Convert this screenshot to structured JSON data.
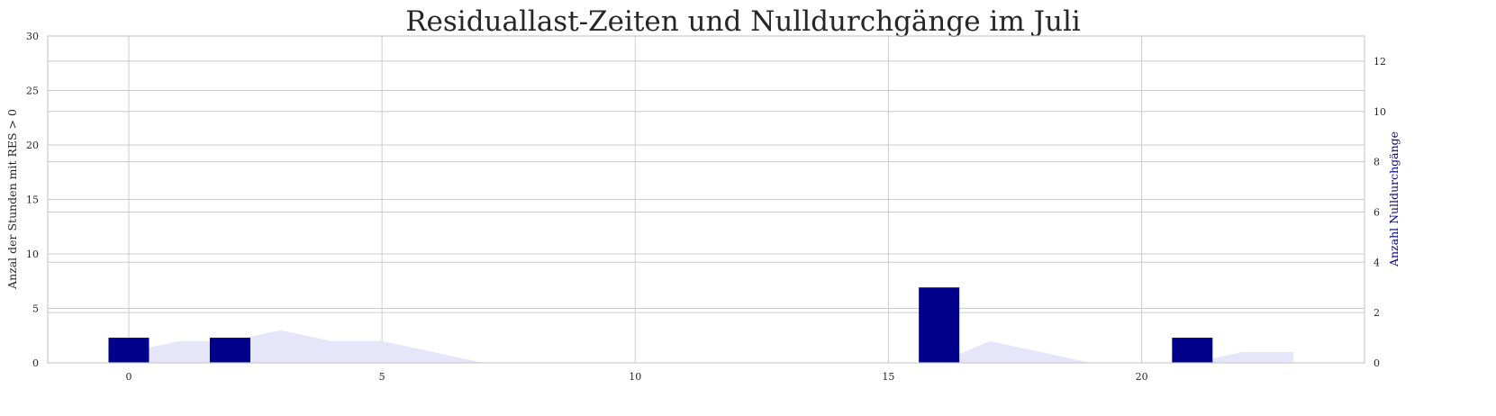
{
  "chart_data": {
    "type": "bar",
    "title": "Residuallast-Zeiten und Nulldurchgänge im Juli",
    "ylabel_left": "Anzal der Stunden mit RES > 0",
    "ylabel_right": "Anzahl Nulldurchgänge",
    "x_ticks": [
      0,
      5,
      10,
      15,
      20
    ],
    "y_left_ticks": [
      0,
      5,
      10,
      15,
      20,
      25,
      30
    ],
    "y_right_ticks": [
      0,
      2,
      4,
      6,
      8,
      10,
      12
    ],
    "xlim": [
      -1.6,
      24.4
    ],
    "ylim_left": [
      0,
      30
    ],
    "ylim_right": [
      0,
      13
    ],
    "grid": true,
    "series": [
      {
        "axis": "left",
        "kind": "area",
        "color": "#e6e6fa",
        "x": [
          0,
          1,
          2,
          3,
          4,
          5,
          6,
          7,
          8,
          9,
          10,
          11,
          12,
          13,
          14,
          15,
          16,
          17,
          18,
          19,
          20,
          21,
          22,
          23
        ],
        "values": [
          1,
          2,
          2,
          3,
          2,
          2,
          1,
          0,
          0,
          0,
          0,
          0,
          0,
          0,
          0,
          0,
          0,
          2,
          1,
          0,
          0,
          0,
          1,
          1
        ]
      },
      {
        "axis": "right",
        "kind": "bar",
        "color": "#00008b",
        "x": [
          0,
          2,
          16,
          21
        ],
        "values": [
          1,
          1,
          3,
          1
        ]
      }
    ]
  }
}
